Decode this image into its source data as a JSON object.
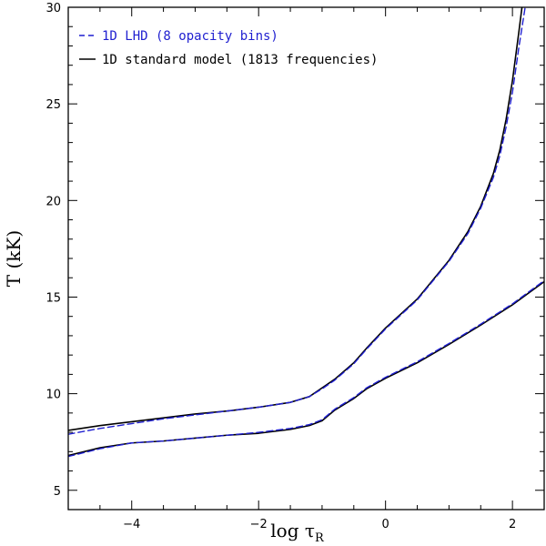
{
  "chart_data": {
    "type": "line",
    "title": "",
    "xlabel": "log τ",
    "xlabel_subscript": "R",
    "ylabel": "T (kK)",
    "xlim": [
      -5,
      2.5
    ],
    "ylim": [
      4,
      30
    ],
    "xticks": [
      -4,
      -2,
      0,
      2
    ],
    "yticks": [
      5,
      10,
      15,
      20,
      25,
      30
    ],
    "legend_position": "top-left",
    "colors": {
      "lhd": "#1f1fd0",
      "standard": "#000000"
    },
    "legend": [
      {
        "label": "1D LHD (8 opacity bins)",
        "style": "dashed",
        "color": "#1f1fd0"
      },
      {
        "label": "1D standard model (1813 frequencies)",
        "style": "solid",
        "color": "#000000"
      }
    ],
    "series": [
      {
        "name": "1D standard model (1813 frequencies)",
        "group": "upper",
        "style": "solid",
        "color": "#000000",
        "x": [
          -5.0,
          -4.5,
          -4.0,
          -3.5,
          -3.0,
          -2.5,
          -2.0,
          -1.5,
          -1.2,
          -1.0,
          -0.8,
          -0.5,
          -0.3,
          0.0,
          0.5,
          1.0,
          1.3,
          1.5,
          1.7,
          1.8,
          1.9,
          2.0,
          2.1,
          2.15
        ],
        "y": [
          8.1,
          8.35,
          8.55,
          8.75,
          8.95,
          9.1,
          9.3,
          9.55,
          9.85,
          10.3,
          10.75,
          11.6,
          12.35,
          13.4,
          14.9,
          16.9,
          18.4,
          19.7,
          21.4,
          22.6,
          24.2,
          26.2,
          28.7,
          30.0
        ]
      },
      {
        "name": "1D LHD (8 opacity bins)",
        "group": "upper",
        "style": "dashed",
        "color": "#1f1fd0",
        "x": [
          -5.0,
          -4.5,
          -4.0,
          -3.5,
          -3.0,
          -2.5,
          -2.0,
          -1.5,
          -1.2,
          -1.0,
          -0.8,
          -0.5,
          -0.3,
          0.0,
          0.5,
          1.0,
          1.3,
          1.5,
          1.7,
          1.8,
          1.9,
          2.0,
          2.1,
          2.2
        ],
        "y": [
          7.9,
          8.2,
          8.45,
          8.7,
          8.9,
          9.1,
          9.3,
          9.55,
          9.85,
          10.25,
          10.7,
          11.55,
          12.3,
          13.35,
          14.85,
          16.85,
          18.3,
          19.6,
          21.2,
          22.3,
          23.8,
          25.6,
          27.9,
          30.0
        ]
      },
      {
        "name": "1D standard model (1813 frequencies)",
        "group": "lower",
        "style": "solid",
        "color": "#000000",
        "x": [
          -5.0,
          -4.5,
          -4.0,
          -3.5,
          -3.0,
          -2.5,
          -2.0,
          -1.5,
          -1.2,
          -1.0,
          -0.8,
          -0.5,
          -0.3,
          0.0,
          0.5,
          1.0,
          1.5,
          2.0,
          2.5
        ],
        "y": [
          6.8,
          7.2,
          7.45,
          7.55,
          7.7,
          7.85,
          7.95,
          8.15,
          8.35,
          8.6,
          9.15,
          9.75,
          10.25,
          10.8,
          11.6,
          12.55,
          13.55,
          14.6,
          15.8
        ]
      },
      {
        "name": "1D LHD (8 opacity bins)",
        "group": "lower",
        "style": "dashed",
        "color": "#1f1fd0",
        "x": [
          -5.0,
          -4.5,
          -4.0,
          -3.5,
          -3.0,
          -2.5,
          -2.0,
          -1.5,
          -1.2,
          -1.0,
          -0.8,
          -0.5,
          -0.3,
          0.0,
          0.5,
          1.0,
          1.5,
          2.0,
          2.5
        ],
        "y": [
          6.75,
          7.15,
          7.45,
          7.55,
          7.7,
          7.85,
          8.0,
          8.2,
          8.4,
          8.65,
          9.2,
          9.8,
          10.3,
          10.85,
          11.65,
          12.6,
          13.6,
          14.65,
          15.85
        ]
      }
    ]
  }
}
